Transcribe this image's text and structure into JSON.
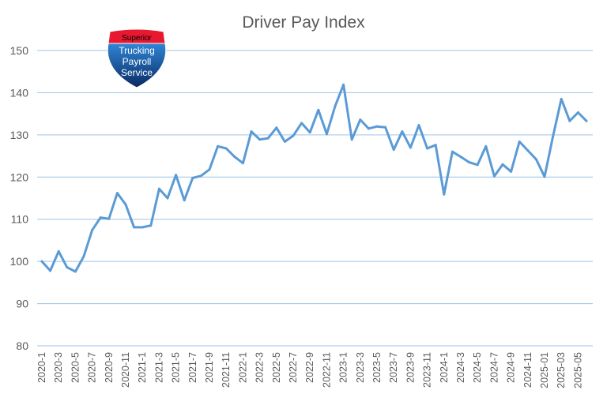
{
  "chart_data": {
    "type": "line",
    "title": "Driver Pay Index",
    "xlabel": "",
    "ylabel": "",
    "ylim": [
      80,
      150
    ],
    "yticks": [
      80,
      90,
      100,
      110,
      120,
      130,
      140,
      150
    ],
    "grid": true,
    "legend": "none",
    "x_tick_labels": [
      "2020-1",
      "2020-3",
      "2020-5",
      "2020-7",
      "2020-9",
      "2020-11",
      "2021-1",
      "2021-3",
      "2021-5",
      "2021-7",
      "2021-9",
      "2021-11",
      "2022-1",
      "2022-3",
      "2022-5",
      "2022-7",
      "2022-9",
      "2022-11",
      "2023-1",
      "2023-3",
      "2023-5",
      "2023-7",
      "2023-9",
      "2023-11",
      "2024-1",
      "2024-3",
      "2024-5",
      "2024-7",
      "2024-9",
      "2024-11",
      "2025-01",
      "2025-03",
      "2025-05"
    ],
    "x": [
      "2020-1",
      "2020-2",
      "2020-3",
      "2020-4",
      "2020-5",
      "2020-6",
      "2020-7",
      "2020-8",
      "2020-9",
      "2020-10",
      "2020-11",
      "2020-12",
      "2021-1",
      "2021-2",
      "2021-3",
      "2021-4",
      "2021-5",
      "2021-6",
      "2021-7",
      "2021-8",
      "2021-9",
      "2021-10",
      "2021-11",
      "2021-12",
      "2022-1",
      "2022-2",
      "2022-3",
      "2022-4",
      "2022-5",
      "2022-6",
      "2022-7",
      "2022-8",
      "2022-9",
      "2022-10",
      "2022-11",
      "2022-12",
      "2023-1",
      "2023-2",
      "2023-3",
      "2023-4",
      "2023-5",
      "2023-6",
      "2023-7",
      "2023-8",
      "2023-9",
      "2023-10",
      "2023-11",
      "2023-12",
      "2024-1",
      "2024-2",
      "2024-3",
      "2024-4",
      "2024-5",
      "2024-6",
      "2024-7",
      "2024-8",
      "2024-9",
      "2024-10",
      "2024-11",
      "2024-12",
      "2025-01",
      "2025-02",
      "2025-03",
      "2025-04",
      "2025-05",
      "2025-06"
    ],
    "series": [
      {
        "color": "#5b9bd5",
        "values": [
          100,
          97.8,
          102.4,
          98.6,
          97.6,
          101.2,
          107.4,
          110.4,
          110.1,
          116.2,
          113.5,
          108.1,
          108.1,
          108.5,
          117.2,
          115.0,
          120.5,
          114.5,
          119.8,
          120.3,
          121.8,
          127.3,
          126.8,
          124.8,
          123.3,
          130.8,
          128.9,
          129.2,
          131.7,
          128.4,
          129.8,
          132.8,
          130.6,
          135.9,
          130.2,
          136.8,
          141.9,
          128.9,
          133.6,
          131.5,
          132.0,
          131.8,
          126.5,
          130.8,
          127.0,
          132.3,
          126.8,
          127.6,
          115.9,
          126.0,
          124.8,
          123.5,
          122.9,
          127.3,
          120.2,
          123.0,
          121.3,
          128.4,
          126.3,
          124.2,
          120.1,
          129.6,
          138.5,
          133.3,
          135.3,
          133.3
        ]
      }
    ]
  },
  "logo": {
    "top_text": "Superior",
    "lines": [
      "Trucking",
      "Payroll",
      "Service"
    ],
    "colors": {
      "red": "#e8182f",
      "navy": "#0b2a63",
      "blue": "#1f6fbf"
    }
  }
}
